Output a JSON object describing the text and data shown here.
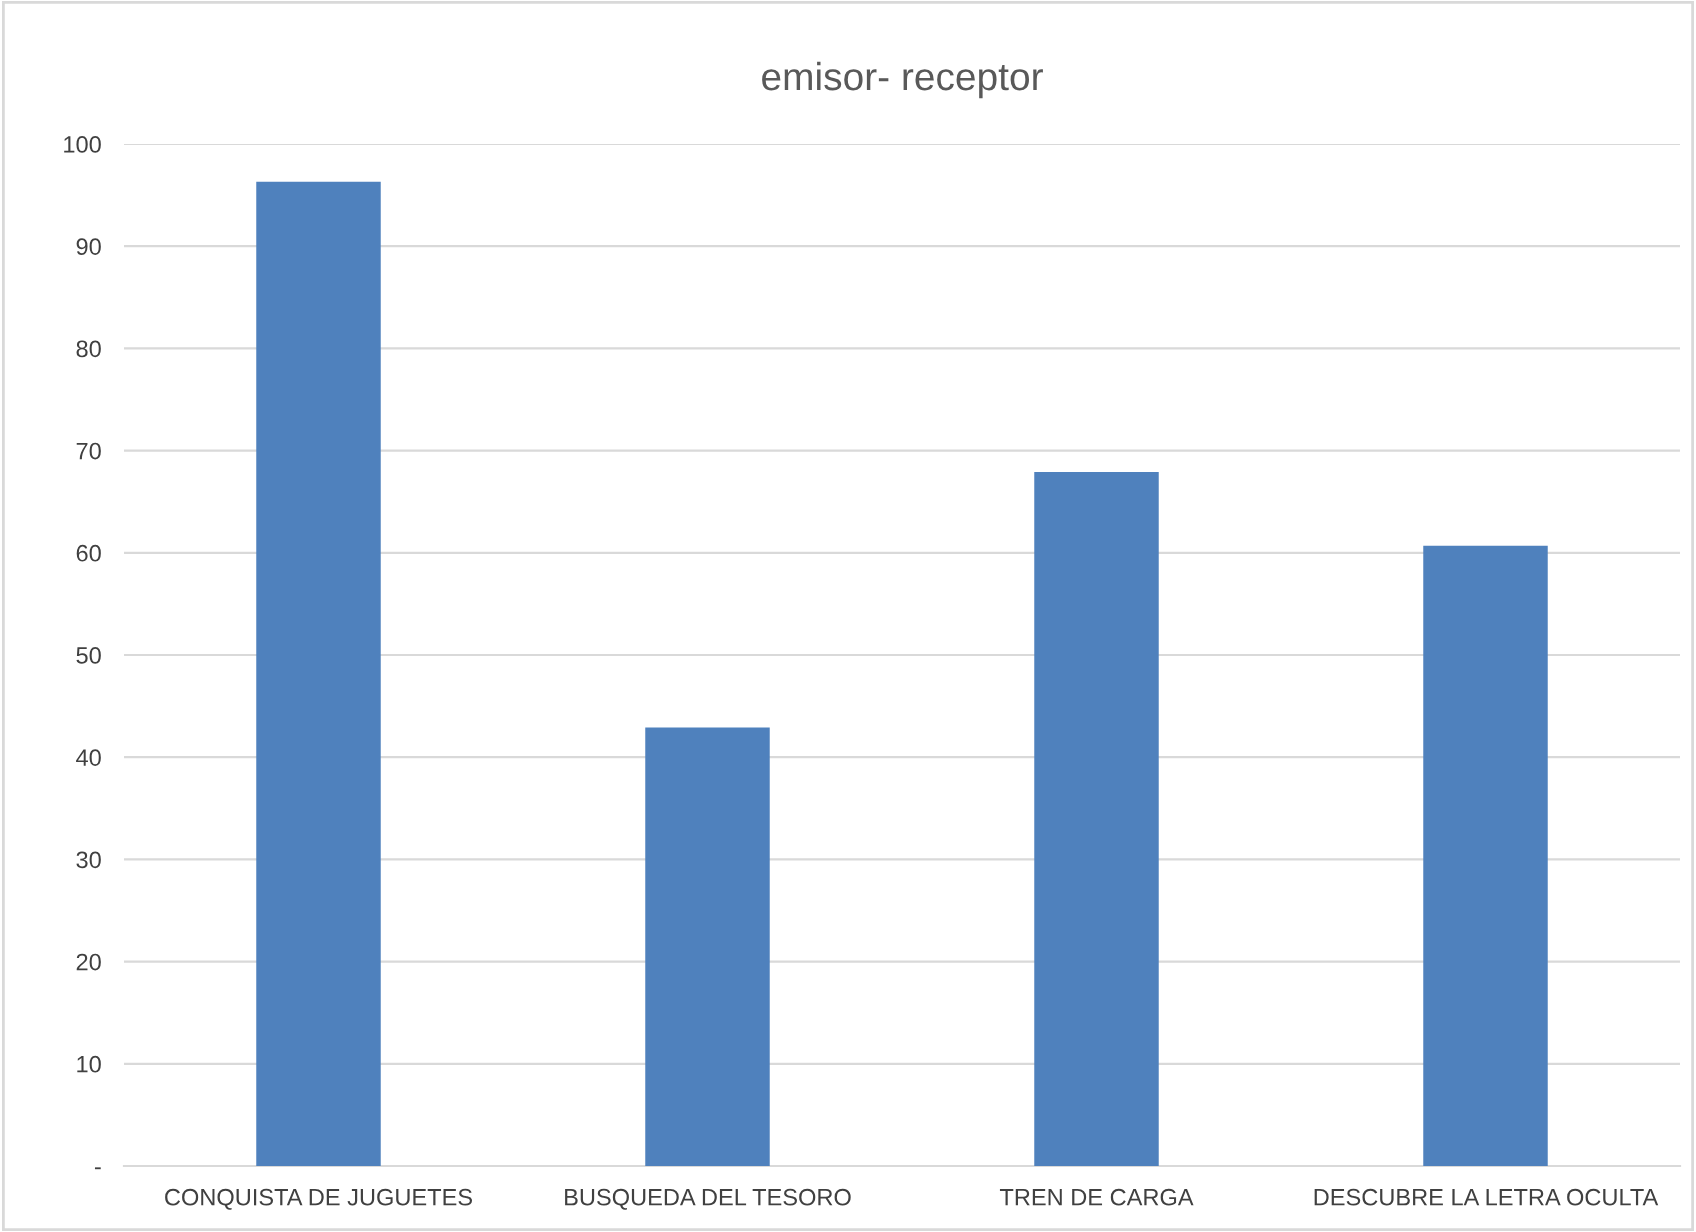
{
  "chart_data": {
    "type": "bar",
    "title": "emisor- receptor",
    "categories": [
      "CONQUISTA DE JUGUETES",
      "BUSQUEDA DEL TESORO",
      "TREN DE CARGA",
      "DESCUBRE LA LETRA OCULTA"
    ],
    "values": [
      96.3,
      42.9,
      67.9,
      60.7
    ],
    "color": "#4f81bd",
    "ylim": [
      0,
      100
    ],
    "yticks": [
      {
        "value": 0,
        "label": "-"
      },
      10,
      20,
      30,
      40,
      50,
      60,
      70,
      80,
      90,
      100
    ],
    "grid": "y"
  }
}
